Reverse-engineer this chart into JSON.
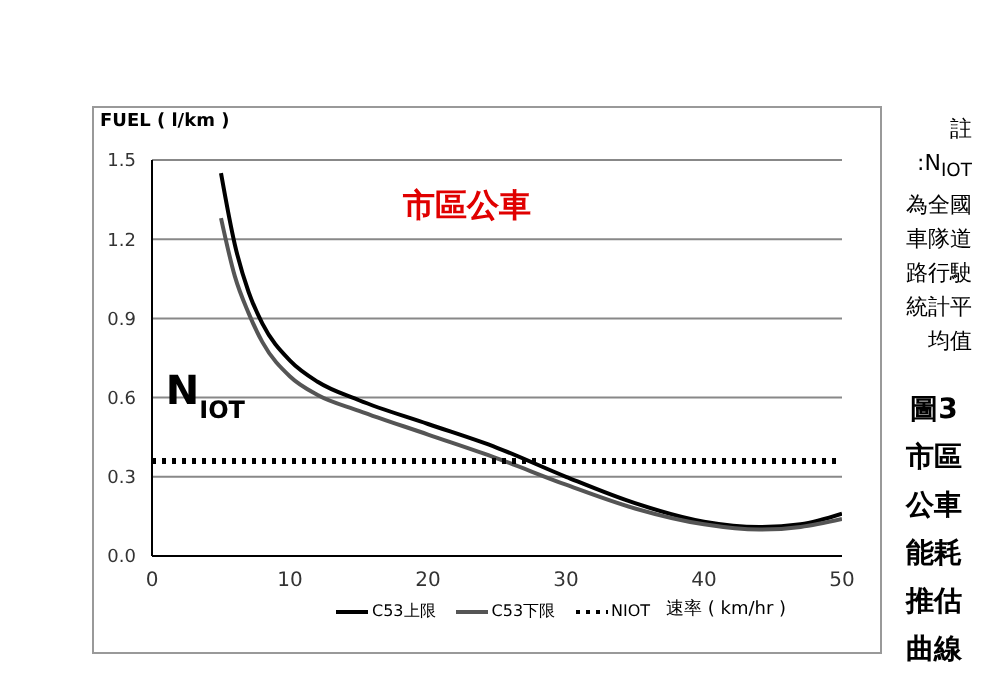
{
  "chart_data": {
    "type": "line",
    "title": "市區公車",
    "ylabel": "FUEL ( l/km )",
    "xlabel": "速率 ( km/hr )",
    "x": [
      5,
      6,
      7,
      8,
      10,
      12,
      15,
      20,
      25,
      30,
      35,
      40,
      44,
      47,
      50
    ],
    "series": [
      {
        "name": "C53上限",
        "color": "#000000",
        "values": [
          1.45,
          1.18,
          1.0,
          0.88,
          0.74,
          0.66,
          0.59,
          0.5,
          0.41,
          0.3,
          0.2,
          0.13,
          0.11,
          0.12,
          0.16
        ]
      },
      {
        "name": "C53下限",
        "color": "#555555",
        "values": [
          1.28,
          1.06,
          0.92,
          0.81,
          0.68,
          0.61,
          0.55,
          0.46,
          0.37,
          0.27,
          0.18,
          0.12,
          0.1,
          0.11,
          0.14
        ]
      },
      {
        "name": "NIOT",
        "color": "#000000",
        "line_style": "dotted",
        "x": [
          0,
          50
        ],
        "values": [
          0.36,
          0.36
        ]
      }
    ],
    "xlim": [
      0,
      50
    ],
    "xticks": [
      0,
      10,
      20,
      30,
      40,
      50
    ],
    "ylim": [
      0,
      1.5
    ],
    "yticks": [
      {
        "value": 0,
        "label": "0.0"
      },
      0.3,
      0.6,
      0.9,
      1.2,
      1.5
    ],
    "grid": "y",
    "legend": "bottom",
    "marker": "none",
    "line_style": "solid",
    "annotations": [
      {
        "text": "N$_{IOT}$",
        "x": 1,
        "y": 0.36
      },
      "註",
      ":N$_{IOT}$為全國車隊道路行駛統計平均值",
      "圖3 市區公車能耗推估曲線"
    ]
  }
}
